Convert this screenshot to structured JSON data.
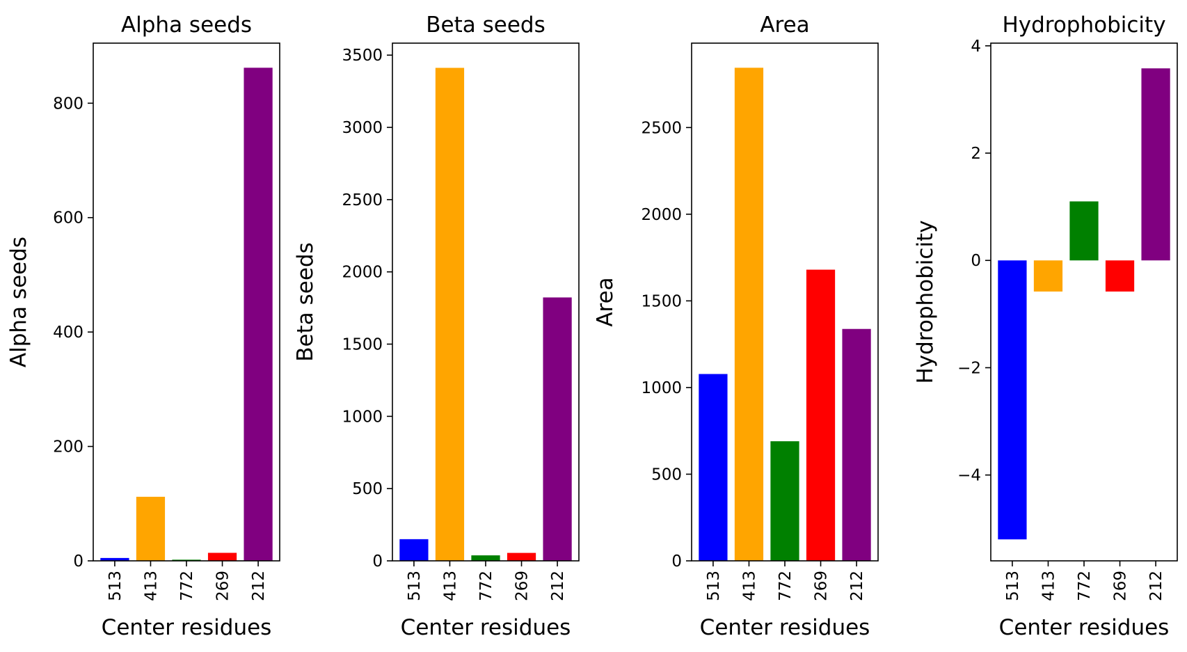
{
  "chart_data": [
    {
      "type": "bar",
      "title": "Alpha seeds",
      "xlabel": "Center residues",
      "ylabel": "Alpha seeds",
      "categories": [
        "513",
        "413",
        "772",
        "269",
        "212"
      ],
      "values": [
        5,
        112,
        2,
        14,
        862
      ],
      "colors": [
        "#0000ff",
        "#ffa500",
        "#008000",
        "#ff0000",
        "#800080"
      ],
      "ylim": [
        0,
        905
      ],
      "yticks": [
        0,
        200,
        400,
        600,
        800
      ],
      "ytick_labels": [
        "0",
        "200",
        "400",
        "600",
        "800"
      ],
      "grid": false
    },
    {
      "type": "bar",
      "title": "Beta seeds",
      "xlabel": "Center residues",
      "ylabel": "Beta seeds",
      "categories": [
        "513",
        "413",
        "772",
        "269",
        "212"
      ],
      "values": [
        150,
        3412,
        38,
        55,
        1823
      ],
      "colors": [
        "#0000ff",
        "#ffa500",
        "#008000",
        "#ff0000",
        "#800080"
      ],
      "ylim": [
        0,
        3583
      ],
      "yticks": [
        0,
        500,
        1000,
        1500,
        2000,
        2500,
        3000,
        3500
      ],
      "ytick_labels": [
        "0",
        "500",
        "1000",
        "1500",
        "2000",
        "2500",
        "3000",
        "3500"
      ],
      "grid": false
    },
    {
      "type": "bar",
      "title": "Area",
      "xlabel": "Center residues",
      "ylabel": "Area",
      "categories": [
        "513",
        "413",
        "772",
        "269",
        "212"
      ],
      "values": [
        1078,
        2845,
        690,
        1680,
        1338
      ],
      "colors": [
        "#0000ff",
        "#ffa500",
        "#008000",
        "#ff0000",
        "#800080"
      ],
      "ylim": [
        0,
        2987
      ],
      "yticks": [
        0,
        500,
        1000,
        1500,
        2000,
        2500
      ],
      "ytick_labels": [
        "0",
        "500",
        "1000",
        "1500",
        "2000",
        "2500"
      ],
      "grid": false
    },
    {
      "type": "bar",
      "title": "Hydrophobicity",
      "xlabel": "Center residues",
      "ylabel": "Hydrophobicity",
      "categories": [
        "513",
        "413",
        "772",
        "269",
        "212"
      ],
      "values": [
        -5.2,
        -0.58,
        1.1,
        -0.58,
        3.58
      ],
      "colors": [
        "#0000ff",
        "#ffa500",
        "#008000",
        "#ff0000",
        "#800080"
      ],
      "ylim": [
        -5.6,
        4.05
      ],
      "yticks": [
        -4,
        -2,
        0,
        2,
        4
      ],
      "ytick_labels": [
        "−4",
        "−2",
        "0",
        "2",
        "4"
      ],
      "grid": false
    }
  ]
}
